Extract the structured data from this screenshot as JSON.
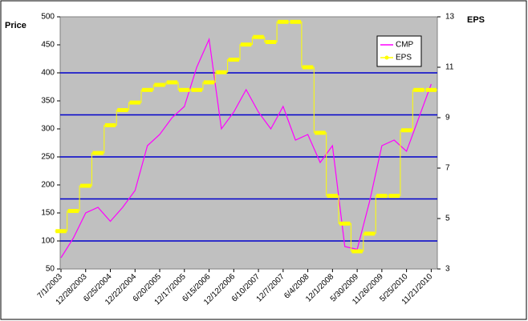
{
  "chart_data": {
    "type": "line",
    "ylabel": "Price",
    "y2label": "EPS",
    "categories": [
      "7/1/2003",
      null,
      "12/28/2003",
      null,
      "6/25/2004",
      null,
      "12/22/2004",
      null,
      "6/20/2005",
      null,
      "12/17/2005",
      null,
      "6/15/2006",
      null,
      "12/12/2006",
      null,
      "6/10/2007",
      null,
      "12/7/2007",
      null,
      "6/4/2008",
      null,
      "12/1/2008",
      null,
      "5/30/2009",
      null,
      "11/26/2009",
      null,
      "5/25/2010",
      null,
      "11/21/2010"
    ],
    "series": [
      {
        "name": "CMP",
        "color": "#ff00ff",
        "values": [
          70,
          105,
          150,
          160,
          135,
          160,
          190,
          270,
          290,
          320,
          340,
          410,
          460,
          300,
          330,
          370,
          330,
          300,
          340,
          280,
          290,
          240,
          270,
          90,
          85,
          170,
          270,
          280,
          260,
          320,
          380
        ]
      },
      {
        "name": "EPS",
        "color": "#ffff00",
        "axis": "y2",
        "step": true,
        "values": [
          4.5,
          5.3,
          6.3,
          7.6,
          8.7,
          9.3,
          9.6,
          10.1,
          10.3,
          10.4,
          10.1,
          10.1,
          10.4,
          10.8,
          11.3,
          11.9,
          12.2,
          12.0,
          12.8,
          12.8,
          11.0,
          8.4,
          5.9,
          4.8,
          3.7,
          4.4,
          5.9,
          5.9,
          8.5,
          10.1,
          10.1
        ]
      }
    ],
    "ylim": [
      50,
      500
    ],
    "yticks": [
      50,
      100,
      150,
      200,
      250,
      300,
      350,
      400,
      450,
      500
    ],
    "y2lim": [
      3,
      13
    ],
    "y2ticks": [
      3,
      5,
      7,
      9,
      11,
      13
    ],
    "reference_lines": [
      100,
      175,
      250,
      325,
      400
    ],
    "reference_color": "#0000cc",
    "legend": "top-right"
  }
}
